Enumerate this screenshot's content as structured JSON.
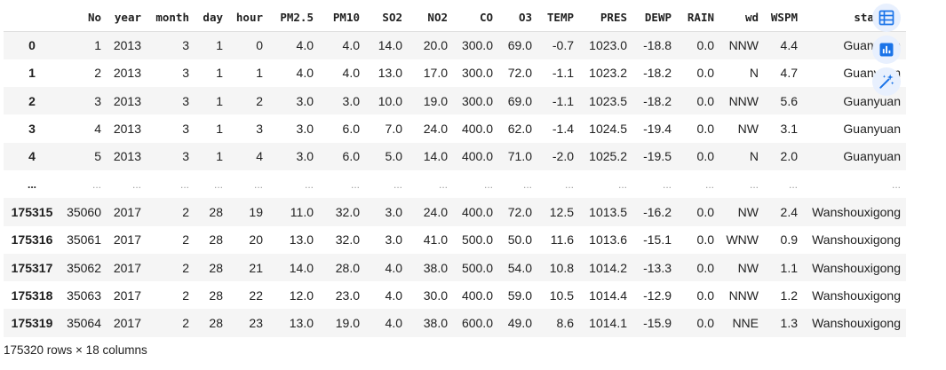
{
  "table": {
    "columns": [
      "",
      "No",
      "year",
      "month",
      "day",
      "hour",
      "PM2.5",
      "PM10",
      "SO2",
      "NO2",
      "CO",
      "O3",
      "TEMP",
      "PRES",
      "DEWP",
      "RAIN",
      "wd",
      "WSPM",
      "station"
    ],
    "rows": [
      {
        "index": "0",
        "cells": [
          "1",
          "2013",
          "3",
          "1",
          "0",
          "4.0",
          "4.0",
          "14.0",
          "20.0",
          "300.0",
          "69.0",
          "-0.7",
          "1023.0",
          "-18.8",
          "0.0",
          "NNW",
          "4.4",
          "Guanyuan"
        ]
      },
      {
        "index": "1",
        "cells": [
          "2",
          "2013",
          "3",
          "1",
          "1",
          "4.0",
          "4.0",
          "13.0",
          "17.0",
          "300.0",
          "72.0",
          "-1.1",
          "1023.2",
          "-18.2",
          "0.0",
          "N",
          "4.7",
          "Guanyuan"
        ]
      },
      {
        "index": "2",
        "cells": [
          "3",
          "2013",
          "3",
          "1",
          "2",
          "3.0",
          "3.0",
          "10.0",
          "19.0",
          "300.0",
          "69.0",
          "-1.1",
          "1023.5",
          "-18.2",
          "0.0",
          "NNW",
          "5.6",
          "Guanyuan"
        ]
      },
      {
        "index": "3",
        "cells": [
          "4",
          "2013",
          "3",
          "1",
          "3",
          "3.0",
          "6.0",
          "7.0",
          "24.0",
          "400.0",
          "62.0",
          "-1.4",
          "1024.5",
          "-19.4",
          "0.0",
          "NW",
          "3.1",
          "Guanyuan"
        ]
      },
      {
        "index": "4",
        "cells": [
          "5",
          "2013",
          "3",
          "1",
          "4",
          "3.0",
          "6.0",
          "5.0",
          "14.0",
          "400.0",
          "71.0",
          "-2.0",
          "1025.2",
          "-19.5",
          "0.0",
          "N",
          "2.0",
          "Guanyuan"
        ]
      },
      {
        "index": "...",
        "cells": [
          "...",
          "...",
          "...",
          "...",
          "...",
          "...",
          "...",
          "...",
          "...",
          "...",
          "...",
          "...",
          "...",
          "...",
          "...",
          "...",
          "...",
          "..."
        ]
      },
      {
        "index": "175315",
        "cells": [
          "35060",
          "2017",
          "2",
          "28",
          "19",
          "11.0",
          "32.0",
          "3.0",
          "24.0",
          "400.0",
          "72.0",
          "12.5",
          "1013.5",
          "-16.2",
          "0.0",
          "NW",
          "2.4",
          "Wanshouxigong"
        ]
      },
      {
        "index": "175316",
        "cells": [
          "35061",
          "2017",
          "2",
          "28",
          "20",
          "13.0",
          "32.0",
          "3.0",
          "41.0",
          "500.0",
          "50.0",
          "11.6",
          "1013.6",
          "-15.1",
          "0.0",
          "WNW",
          "0.9",
          "Wanshouxigong"
        ]
      },
      {
        "index": "175317",
        "cells": [
          "35062",
          "2017",
          "2",
          "28",
          "21",
          "14.0",
          "28.0",
          "4.0",
          "38.0",
          "500.0",
          "54.0",
          "10.8",
          "1014.2",
          "-13.3",
          "0.0",
          "NW",
          "1.1",
          "Wanshouxigong"
        ]
      },
      {
        "index": "175318",
        "cells": [
          "35063",
          "2017",
          "2",
          "28",
          "22",
          "12.0",
          "23.0",
          "4.0",
          "30.0",
          "400.0",
          "59.0",
          "10.5",
          "1014.4",
          "-12.9",
          "0.0",
          "NNW",
          "1.2",
          "Wanshouxigong"
        ]
      },
      {
        "index": "175319",
        "cells": [
          "35064",
          "2017",
          "2",
          "28",
          "23",
          "13.0",
          "19.0",
          "4.0",
          "38.0",
          "600.0",
          "49.0",
          "8.6",
          "1014.1",
          "-15.9",
          "0.0",
          "NNE",
          "1.3",
          "Wanshouxigong"
        ]
      }
    ]
  },
  "footer": {
    "shape_text": "175320 rows × 18 columns"
  },
  "side_buttons": [
    {
      "name": "table-icon",
      "color": "#1a73e8"
    },
    {
      "name": "chart-icon",
      "color": "#1a73e8"
    },
    {
      "name": "magic-wand-icon",
      "color": "#1a73e8"
    }
  ],
  "colors": {
    "stripe": "#f5f5f5",
    "button_bg": "#e8f0fe",
    "accent": "#1a73e8"
  }
}
